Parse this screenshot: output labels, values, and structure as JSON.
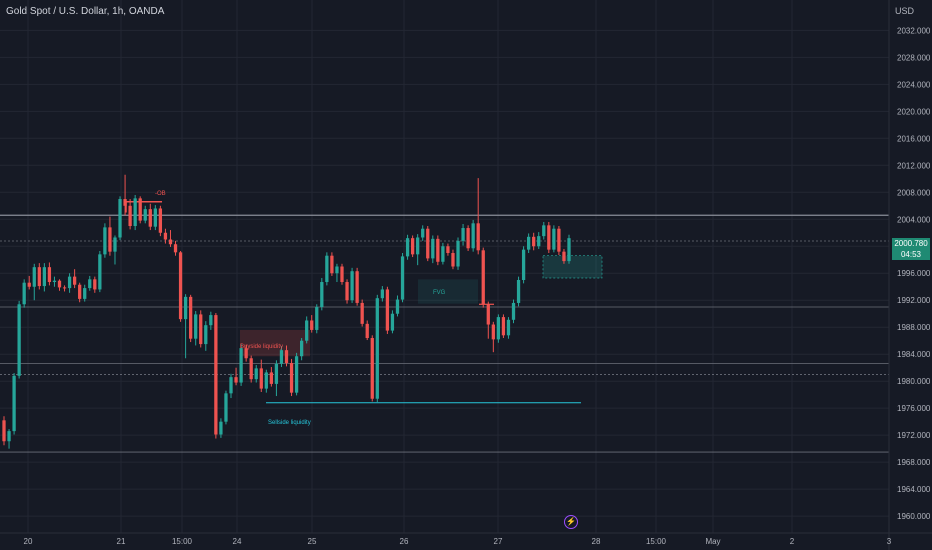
{
  "header": {
    "title": "Gold Spot / U.S. Dollar, 1h, OANDA",
    "currency": "USD"
  },
  "price_tag": {
    "price": "2000.780",
    "countdown": "04:53"
  },
  "annotations": {
    "ob": "-OB",
    "fvg": "FVG",
    "buyside": "Buyside liquidity",
    "sellside": "Sellside liquidity"
  },
  "colors": {
    "bull": "#26a69a",
    "bear": "#ef5350",
    "grid": "#232733",
    "axis_text": "#b2b5be",
    "background": "#161a25"
  },
  "chart_data": {
    "type": "candlestick",
    "title": "Gold Spot / U.S. Dollar, 1h, OANDA",
    "ylim": [
      1957.5,
      2036.5
    ],
    "y_ticks": [
      1960,
      1964,
      1968,
      1972,
      1976,
      1980,
      1984,
      1988,
      1992,
      1996,
      2000,
      2004,
      2008,
      2012,
      2016,
      2020,
      2024,
      2028,
      2032
    ],
    "x_ticks": [
      "20",
      "21",
      "15:00",
      "24",
      "25",
      "26",
      "27",
      "28",
      "15:00",
      "May",
      "2",
      "3"
    ],
    "current_price": 2000.78,
    "horizontal_levels": [
      2004.6,
      2000.78,
      1991.0,
      1982.6,
      1981.0,
      1969.5
    ],
    "candles_ohlc": [
      [
        1974.2,
        1974.8,
        1970.5,
        1971.1
      ],
      [
        1971.1,
        1972.9,
        1970.0,
        1972.6
      ],
      [
        1972.6,
        1981.2,
        1972.1,
        1980.8
      ],
      [
        1980.8,
        1991.9,
        1980.4,
        1991.4
      ],
      [
        1991.4,
        1995.1,
        1990.9,
        1994.6
      ],
      [
        1994.6,
        1995.6,
        1993.6,
        1994.0
      ],
      [
        1994.0,
        1997.4,
        1992.0,
        1996.9
      ],
      [
        1996.9,
        1997.5,
        1993.6,
        1994.1
      ],
      [
        1994.1,
        1997.5,
        1993.3,
        1996.9
      ],
      [
        1996.9,
        1997.6,
        1994.2,
        1994.7
      ],
      [
        1994.7,
        1995.5,
        1994.0,
        1994.9
      ],
      [
        1994.9,
        1995.1,
        1993.4,
        1993.9
      ],
      [
        1993.9,
        1994.2,
        1993.3,
        1993.8
      ],
      [
        1993.8,
        1996.0,
        1993.1,
        1995.5
      ],
      [
        1995.5,
        1996.6,
        1993.8,
        1994.3
      ],
      [
        1994.3,
        1994.6,
        1991.7,
        1992.2
      ],
      [
        1992.2,
        1994.3,
        1991.8,
        1993.8
      ],
      [
        1993.8,
        1995.6,
        1993.4,
        1995.1
      ],
      [
        1995.1,
        1995.5,
        1993.1,
        1993.6
      ],
      [
        1993.6,
        1999.3,
        1993.2,
        1998.8
      ],
      [
        1998.8,
        2003.4,
        1998.3,
        2002.8
      ],
      [
        2002.8,
        2004.4,
        1998.6,
        1999.2
      ],
      [
        1999.2,
        2001.6,
        1997.3,
        2001.3
      ],
      [
        2001.3,
        2007.4,
        2000.9,
        2007.0
      ],
      [
        2007.0,
        2010.6,
        2004.6,
        2006.0
      ],
      [
        2006.0,
        2007.0,
        2002.5,
        2003.0
      ],
      [
        2003.0,
        2007.6,
        2002.4,
        2007.1
      ],
      [
        2007.1,
        2007.4,
        2003.4,
        2003.8
      ],
      [
        2003.8,
        2006.0,
        2003.4,
        2005.5
      ],
      [
        2005.5,
        2006.3,
        2002.4,
        2002.9
      ],
      [
        2002.9,
        2006.1,
        2002.4,
        2005.6
      ],
      [
        2005.6,
        2006.0,
        2001.5,
        2002.0
      ],
      [
        2002.0,
        2002.6,
        2000.4,
        2001.0
      ],
      [
        2001.0,
        2002.4,
        1999.9,
        2000.3
      ],
      [
        2000.3,
        2000.8,
        1998.6,
        1999.1
      ],
      [
        1999.1,
        1999.3,
        1988.8,
        1989.2
      ],
      [
        1989.2,
        1992.9,
        1983.4,
        1992.5
      ],
      [
        1992.5,
        1992.8,
        1985.8,
        1986.3
      ],
      [
        1986.3,
        1990.4,
        1985.3,
        1989.9
      ],
      [
        1989.9,
        1990.5,
        1985.0,
        1985.5
      ],
      [
        1985.5,
        1988.9,
        1984.5,
        1988.3
      ],
      [
        1988.3,
        1990.3,
        1987.6,
        1989.8
      ],
      [
        1989.8,
        1990.1,
        1971.5,
        1972.1
      ],
      [
        1972.1,
        1974.5,
        1971.6,
        1974.0
      ],
      [
        1974.0,
        1978.6,
        1973.6,
        1978.2
      ],
      [
        1978.2,
        1981.1,
        1977.5,
        1980.6
      ],
      [
        1980.6,
        1982.0,
        1979.4,
        1979.8
      ],
      [
        1979.8,
        1985.5,
        1979.3,
        1984.9
      ],
      [
        1984.9,
        1985.4,
        1982.9,
        1983.4
      ],
      [
        1983.4,
        1983.8,
        1979.8,
        1980.3
      ],
      [
        1980.3,
        1982.4,
        1979.8,
        1981.9
      ],
      [
        1981.9,
        1983.2,
        1978.4,
        1978.9
      ],
      [
        1978.9,
        1981.7,
        1978.3,
        1981.3
      ],
      [
        1981.3,
        1982.1,
        1979.2,
        1979.6
      ],
      [
        1979.6,
        1983.1,
        1977.8,
        1982.6
      ],
      [
        1982.6,
        1985.2,
        1982.1,
        1984.6
      ],
      [
        1984.6,
        1985.3,
        1982.2,
        1982.7
      ],
      [
        1982.7,
        1983.3,
        1977.8,
        1978.3
      ],
      [
        1978.3,
        1984.2,
        1977.9,
        1983.7
      ],
      [
        1983.7,
        1986.4,
        1983.1,
        1986.0
      ],
      [
        1986.0,
        1989.6,
        1985.6,
        1989.0
      ],
      [
        1989.0,
        1989.8,
        1987.2,
        1987.6
      ],
      [
        1987.6,
        1991.4,
        1987.1,
        1991.0
      ],
      [
        1991.0,
        1995.3,
        1990.5,
        1994.7
      ],
      [
        1994.7,
        1999.1,
        1994.2,
        1998.6
      ],
      [
        1998.6,
        1999.1,
        1995.6,
        1996.0
      ],
      [
        1996.0,
        1997.4,
        1994.7,
        1997.0
      ],
      [
        1997.0,
        1997.4,
        1994.3,
        1994.7
      ],
      [
        1994.7,
        1995.1,
        1991.5,
        1992.0
      ],
      [
        1992.0,
        1996.8,
        1991.6,
        1996.3
      ],
      [
        1996.3,
        1996.8,
        1991.2,
        1991.6
      ],
      [
        1991.6,
        1992.1,
        1988.1,
        1988.5
      ],
      [
        1988.5,
        1989.0,
        1986.1,
        1986.4
      ],
      [
        1986.4,
        1986.8,
        1977.0,
        1977.4
      ],
      [
        1977.4,
        1992.8,
        1976.9,
        1992.3
      ],
      [
        1992.3,
        1994.1,
        1991.8,
        1993.6
      ],
      [
        1993.6,
        1994.0,
        1987.0,
        1987.5
      ],
      [
        1987.5,
        1990.5,
        1987.1,
        1990.0
      ],
      [
        1990.0,
        1992.7,
        1989.6,
        1992.1
      ],
      [
        1992.1,
        1999.0,
        1991.7,
        1998.5
      ],
      [
        1998.5,
        2001.7,
        1998.0,
        2001.2
      ],
      [
        2001.2,
        2001.6,
        1998.4,
        1998.8
      ],
      [
        1998.8,
        2001.8,
        1997.2,
        2001.3
      ],
      [
        2001.3,
        2003.1,
        2000.8,
        2002.6
      ],
      [
        2002.6,
        2003.0,
        1997.8,
        1998.2
      ],
      [
        1998.2,
        2001.6,
        1997.5,
        2001.1
      ],
      [
        2001.1,
        2001.6,
        1997.2,
        1997.7
      ],
      [
        1997.7,
        2000.5,
        1997.3,
        2000.0
      ],
      [
        2000.0,
        2000.4,
        1998.6,
        1999.0
      ],
      [
        1999.0,
        1999.5,
        1996.6,
        1997.0
      ],
      [
        1997.0,
        2001.3,
        1996.5,
        2000.8
      ],
      [
        2000.8,
        2003.3,
        2000.1,
        2002.7
      ],
      [
        2002.7,
        2003.1,
        1999.3,
        1999.7
      ],
      [
        1999.7,
        2003.9,
        1999.2,
        2003.4
      ],
      [
        2003.4,
        2010.1,
        1998.8,
        1999.4
      ],
      [
        1999.4,
        1999.8,
        1990.9,
        1991.4
      ],
      [
        1991.4,
        1991.8,
        1986.3,
        1988.4
      ],
      [
        1988.4,
        1988.8,
        1984.3,
        1986.2
      ],
      [
        1986.2,
        1989.9,
        1985.7,
        1989.5
      ],
      [
        1989.5,
        1989.9,
        1986.4,
        1986.8
      ],
      [
        1986.8,
        1989.5,
        1986.3,
        1989.1
      ],
      [
        1989.1,
        1992.1,
        1988.6,
        1991.6
      ],
      [
        1991.6,
        1995.5,
        1991.1,
        1995.0
      ],
      [
        1995.0,
        2000.0,
        1994.5,
        1999.5
      ],
      [
        1999.5,
        2001.9,
        1999.0,
        2001.4
      ],
      [
        2001.4,
        2002.0,
        1999.4,
        2000.0
      ],
      [
        2000.0,
        2002.1,
        1999.6,
        2001.5
      ],
      [
        2001.5,
        2003.6,
        2001.0,
        2003.1
      ],
      [
        2003.1,
        2003.6,
        1999.0,
        1999.5
      ],
      [
        1999.5,
        2003.1,
        1999.1,
        2002.6
      ],
      [
        2002.6,
        2003.0,
        1998.7,
        1999.2
      ],
      [
        1999.2,
        1999.6,
        1997.4,
        1997.8
      ],
      [
        1997.8,
        2001.7,
        1997.4,
        2001.2
      ]
    ]
  }
}
